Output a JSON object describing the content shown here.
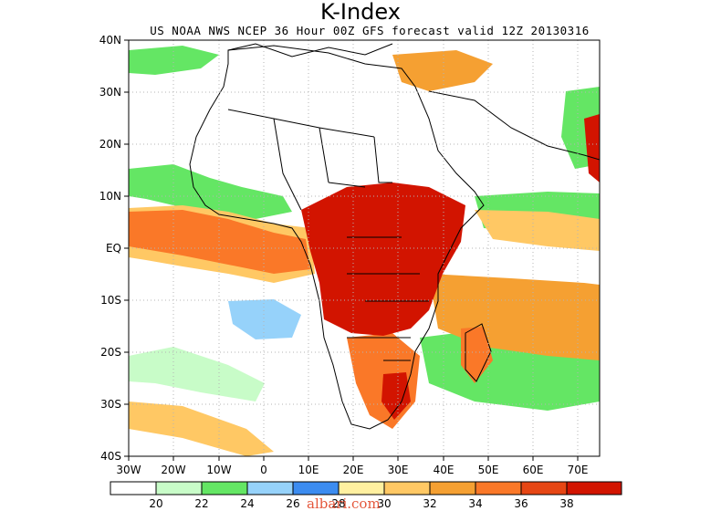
{
  "title": "K-Index",
  "subtitle": "US NOAA NWS NCEP 36 Hour 00Z GFS forecast valid 12Z 20130316",
  "watermark": "albari.com",
  "map": {
    "lon_range": [
      -30,
      75
    ],
    "lat_range": [
      -40,
      40
    ],
    "grid": "dotted",
    "lat_labels": [
      "40N",
      "30N",
      "20N",
      "10N",
      "EQ",
      "10S",
      "20S",
      "30S",
      "40S"
    ],
    "lon_labels": [
      "30W",
      "20W",
      "10W",
      "0",
      "10E",
      "20E",
      "30E",
      "40E",
      "50E",
      "60E",
      "70E"
    ]
  },
  "colorbar": {
    "colors": [
      "#ffffff",
      "#c8fcc8",
      "#64e664",
      "#96d2fa",
      "#3c8cf0",
      "#fff0a0",
      "#ffc864",
      "#f5a032",
      "#fa7828",
      "#e64614",
      "#d21400"
    ],
    "labels": [
      "20",
      "22",
      "24",
      "26",
      "28",
      "30",
      "32",
      "34",
      "36",
      "38"
    ]
  },
  "legend_colors": {
    "coast": "#000000",
    "grid": "#b4b4b4"
  }
}
